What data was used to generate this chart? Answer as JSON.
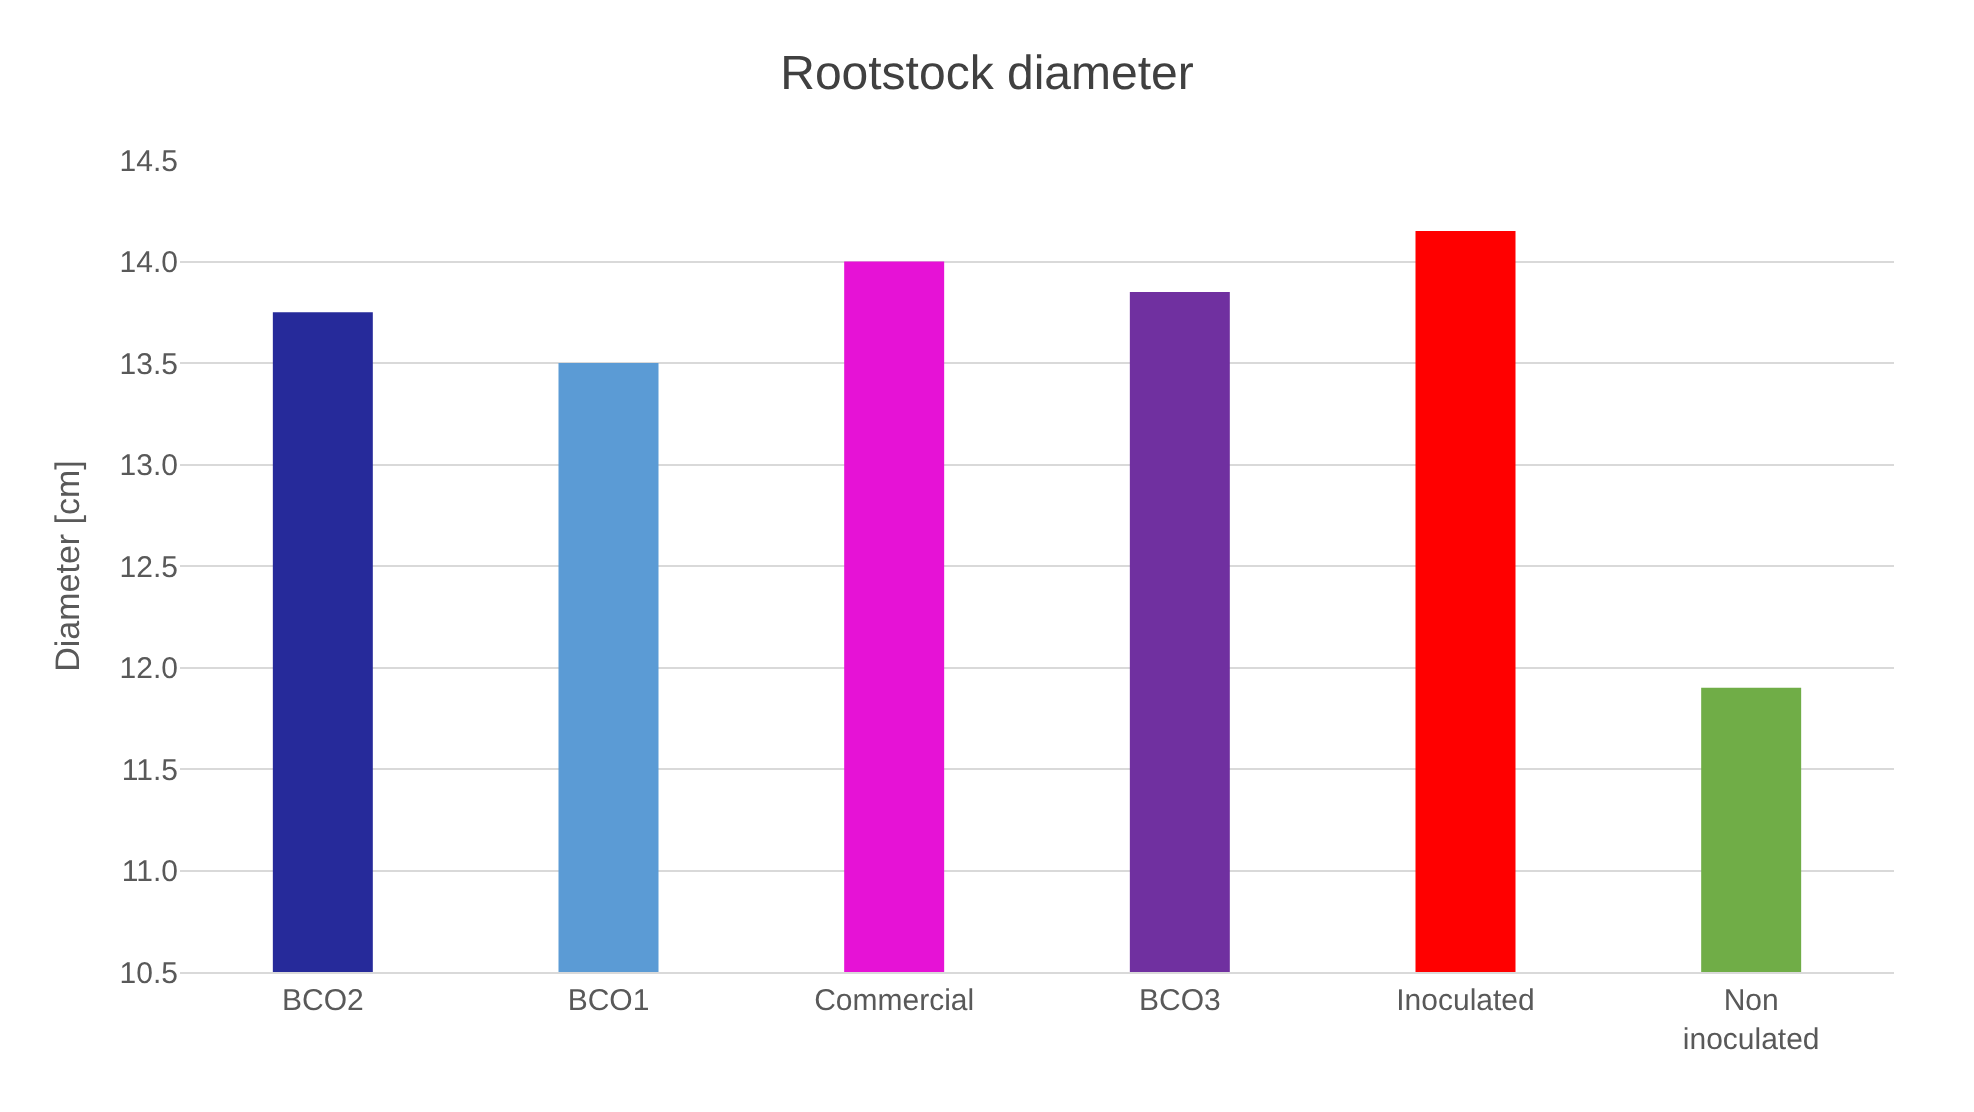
{
  "chart_data": {
    "type": "bar",
    "title": "Rootstock diameter",
    "ylabel": "Diameter [cm]",
    "categories": [
      "BCO2",
      "BCO1",
      "Commercial",
      "BCO3",
      "Inoculated",
      "Non inoculated"
    ],
    "values": [
      13.75,
      13.5,
      14.0,
      13.85,
      14.15,
      11.9
    ],
    "colors": [
      "#262a9a",
      "#5b9bd5",
      "#e612d6",
      "#7030a0",
      "#ff0000",
      "#70ad47"
    ],
    "ylim": [
      10.5,
      14.5
    ],
    "yticks": [
      {
        "value": 10.5,
        "label": "10.5"
      },
      {
        "value": 11.0,
        "label": "11.0"
      },
      {
        "value": 11.5,
        "label": "11.5"
      },
      {
        "value": 12.0,
        "label": "12.0"
      },
      {
        "value": 12.5,
        "label": "12.5"
      },
      {
        "value": 13.0,
        "label": "13.0"
      },
      {
        "value": 13.5,
        "label": "13.5"
      },
      {
        "value": 14.0,
        "label": "14.0"
      },
      {
        "value": 14.5,
        "label": "14.5"
      }
    ],
    "grid": "y"
  }
}
